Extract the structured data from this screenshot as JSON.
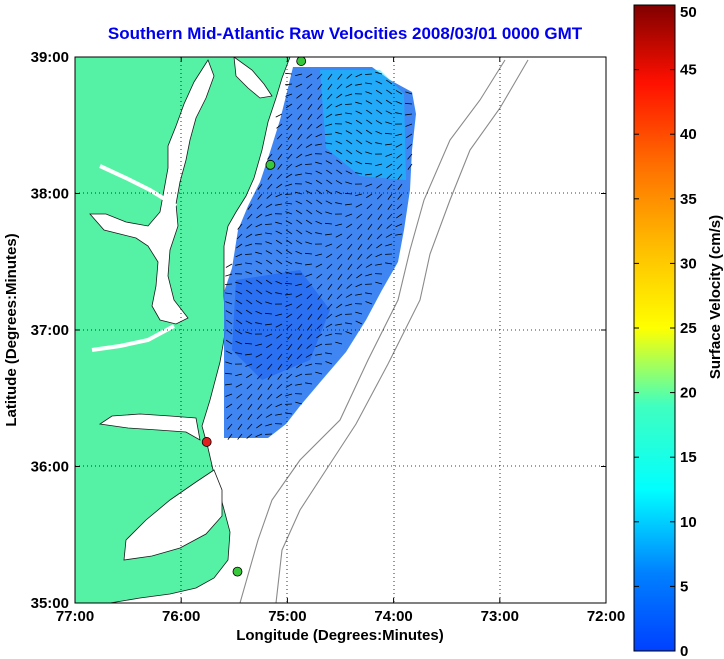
{
  "title": "Southern Mid-Atlantic Raw Velocities 2008/03/01 0000 GMT",
  "xlabel": "Longitude (Degrees:Minutes)",
  "ylabel": "Latitude (Degrees:Minutes)",
  "colorbar_label": "Surface Velocity (cm/s)",
  "colors": {
    "land": "#55f2a6",
    "title": "#0000ee",
    "current_field": "#2f7cf2",
    "station_green": "#37c83c",
    "station_red": "#e02020",
    "bathymetry": "#8a8a8a"
  },
  "chart_data": {
    "type": "map",
    "xlim": [
      77,
      72
    ],
    "ylim": [
      35,
      39
    ],
    "x_ticks": [
      "77:00",
      "76:00",
      "75:00",
      "74:00",
      "73:00",
      "72:00"
    ],
    "y_ticks": [
      "35:00",
      "36:00",
      "37:00",
      "38:00",
      "39:00"
    ],
    "grid": true,
    "colorbar": {
      "min": 0,
      "max": 50,
      "ticks": [
        "0",
        "5",
        "10",
        "15",
        "20",
        "25",
        "30",
        "35",
        "40",
        "45",
        "50"
      ]
    },
    "stations": [
      {
        "lon": 74.87,
        "lat": 38.97,
        "status": "green"
      },
      {
        "lon": 75.16,
        "lat": 38.21,
        "status": "green"
      },
      {
        "lon": 75.76,
        "lat": 36.18,
        "status": "red"
      },
      {
        "lon": 75.47,
        "lat": 35.23,
        "status": "green"
      }
    ]
  }
}
